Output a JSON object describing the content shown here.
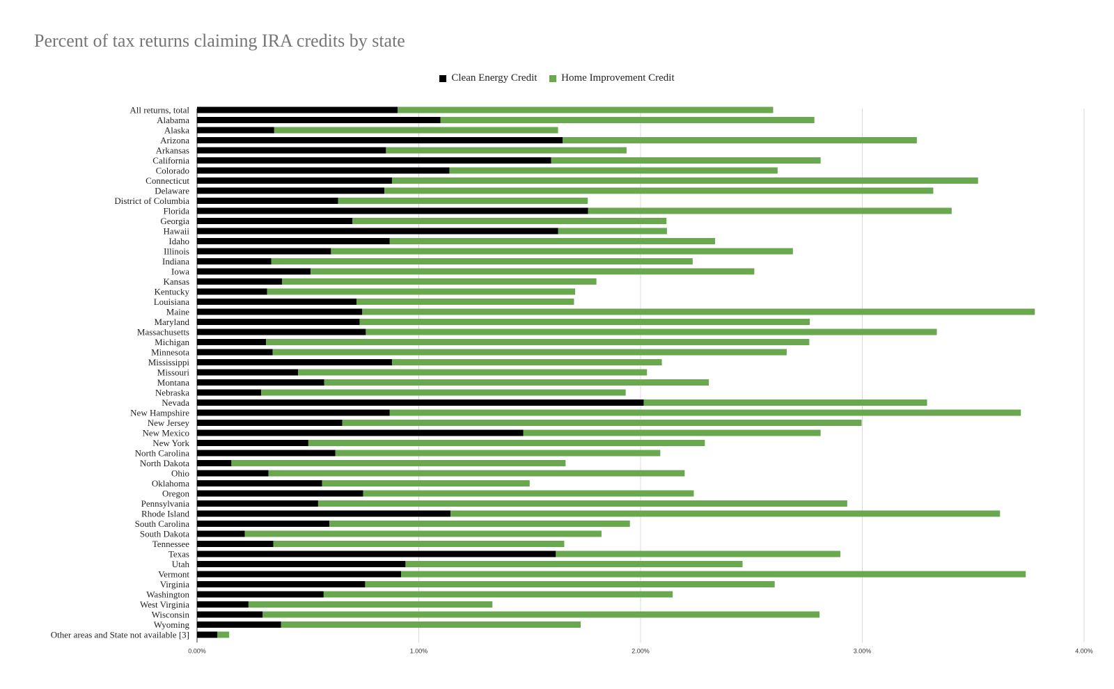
{
  "chart_data": {
    "type": "bar",
    "orientation": "horizontal",
    "stacked": true,
    "title": "Percent of tax returns claiming IRA credits by state",
    "xlabel": "",
    "ylabel": "",
    "xlim": [
      0,
      0.04
    ],
    "x_ticks": [
      "0.00%",
      "1.00%",
      "2.00%",
      "3.00%",
      "4.00%"
    ],
    "grid": "vertical",
    "legend_position": "top",
    "colors": {
      "Clean Energy Credit": "#000000",
      "Home Improvement Credit": "#6aa84f"
    },
    "categories": [
      "All returns, total",
      "Alabama",
      "Alaska",
      "Arizona",
      "Arkansas",
      "California",
      "Colorado",
      "Connecticut",
      "Delaware",
      "District of Columbia",
      "Florida",
      "Georgia",
      "Hawaii",
      "Idaho",
      "Illinois",
      "Indiana",
      "Iowa",
      "Kansas",
      "Kentucky",
      "Louisiana",
      "Maine",
      "Maryland",
      "Massachusetts",
      "Michigan",
      "Minnesota",
      "Mississippi",
      "Missouri",
      "Montana",
      "Nebraska",
      "Nevada",
      "New Hampshire",
      "New Jersey",
      "New Mexico",
      "New York",
      "North Carolina",
      "North Dakota",
      "Ohio",
      "Oklahoma",
      "Oregon",
      "Pennsylvania",
      "Rhode Island",
      "South Carolina",
      "South Dakota",
      "Tennessee",
      "Texas",
      "Utah",
      "Vermont",
      "Virginia",
      "Washington",
      "West Virginia",
      "Wisconsin",
      "Wyoming",
      "Other areas and State not available [3]"
    ],
    "series": [
      {
        "name": "Clean Energy Credit",
        "values": [
          0.00905,
          0.01098,
          0.00348,
          0.01649,
          0.00852,
          0.01597,
          0.01138,
          0.00879,
          0.00845,
          0.00636,
          0.01763,
          0.00701,
          0.01628,
          0.00869,
          0.00604,
          0.00335,
          0.00512,
          0.00383,
          0.00316,
          0.00719,
          0.00745,
          0.00733,
          0.00761,
          0.00311,
          0.00341,
          0.00879,
          0.00456,
          0.00573,
          0.00289,
          0.02014,
          0.00869,
          0.00655,
          0.01471,
          0.00502,
          0.00624,
          0.00155,
          0.00322,
          0.00564,
          0.00749,
          0.00546,
          0.01143,
          0.00597,
          0.00215,
          0.00344,
          0.01618,
          0.0094,
          0.0092,
          0.00758,
          0.00571,
          0.00232,
          0.00296,
          0.00379,
          0.00092
        ]
      },
      {
        "name": "Home Improvement Credit",
        "values": [
          0.01693,
          0.01686,
          0.0128,
          0.01597,
          0.01085,
          0.01215,
          0.0148,
          0.02643,
          0.02475,
          0.01126,
          0.0164,
          0.01416,
          0.00491,
          0.01467,
          0.02083,
          0.019,
          0.02001,
          0.01418,
          0.01389,
          0.00981,
          0.03033,
          0.0203,
          0.02575,
          0.0245,
          0.02318,
          0.01217,
          0.01573,
          0.01735,
          0.01644,
          0.01278,
          0.02846,
          0.02342,
          0.01341,
          0.01788,
          0.01465,
          0.01507,
          0.01877,
          0.00936,
          0.01491,
          0.02386,
          0.02478,
          0.01355,
          0.01609,
          0.01312,
          0.01283,
          0.0152,
          0.02817,
          0.01847,
          0.01574,
          0.011,
          0.02511,
          0.01351,
          0.00053
        ]
      }
    ]
  }
}
